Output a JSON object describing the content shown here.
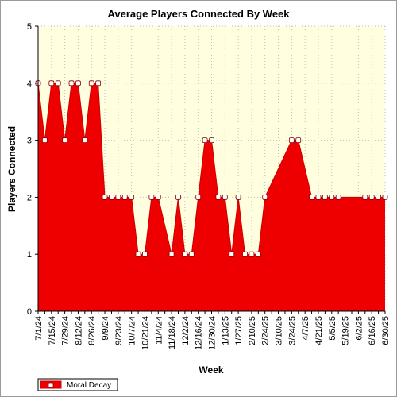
{
  "chart_data": {
    "type": "area",
    "title": "Average Players Connected By Week",
    "xlabel": "Week",
    "ylabel": "Players Connected",
    "ylim": [
      0,
      5
    ],
    "yticks": [
      "0",
      "1",
      "2",
      "3",
      "4",
      "5"
    ],
    "grid": true,
    "legend_position": "bottom-left",
    "colors": {
      "plot_background": "#ffffe0",
      "series_fill": "#ee0000",
      "series_line": "#cc0000",
      "marker_fill": "#ffffff",
      "grid": "#bdbdbd"
    },
    "x": [
      "7/1/24",
      "7/8/24",
      "7/15/24",
      "7/22/24",
      "7/29/24",
      "8/5/24",
      "8/12/24",
      "8/19/24",
      "8/26/24",
      "9/2/24",
      "9/9/24",
      "9/16/24",
      "9/23/24",
      "9/30/24",
      "10/7/24",
      "10/14/24",
      "10/21/24",
      "10/28/24",
      "11/4/24",
      "11/11/24",
      "11/18/24",
      "11/25/24",
      "12/2/24",
      "12/9/24",
      "12/16/24",
      "12/23/24",
      "12/30/24",
      "1/6/25",
      "1/13/25",
      "1/20/25",
      "1/27/25",
      "2/3/25",
      "2/10/25",
      "2/17/25",
      "2/24/25",
      "3/3/25",
      "3/10/25",
      "3/17/25",
      "3/24/25",
      "3/31/25",
      "4/7/25",
      "4/14/25",
      "4/21/25",
      "4/28/25",
      "5/5/25",
      "5/12/25",
      "5/19/25",
      "5/26/25",
      "6/2/25",
      "6/9/25",
      "6/16/25",
      "6/23/25",
      "6/30/25"
    ],
    "x_tick_labels": [
      "7/1/24",
      "7/15/24",
      "7/29/24",
      "8/12/24",
      "8/26/24",
      "9/9/24",
      "9/23/24",
      "10/7/24",
      "10/21/24",
      "11/4/24",
      "11/18/24",
      "12/2/24",
      "12/16/24",
      "12/30/24",
      "1/13/25",
      "1/27/25",
      "2/10/25",
      "2/24/25",
      "3/10/25",
      "3/24/25",
      "4/7/25",
      "4/21/25",
      "5/5/25",
      "5/19/25",
      "6/2/25",
      "6/16/25",
      "6/30/25"
    ],
    "series": [
      {
        "name": "Moral Decay",
        "values": [
          4,
          3,
          4,
          4,
          3,
          4,
          4,
          3,
          4,
          4,
          2,
          2,
          2,
          2,
          2,
          1,
          1,
          2,
          2,
          null,
          1,
          2,
          1,
          1,
          2,
          3,
          3,
          2,
          2,
          1,
          2,
          1,
          1,
          1,
          2,
          null,
          null,
          null,
          3,
          3,
          null,
          2,
          2,
          2,
          2,
          2,
          null,
          null,
          null,
          2,
          2,
          2,
          2
        ]
      }
    ]
  }
}
